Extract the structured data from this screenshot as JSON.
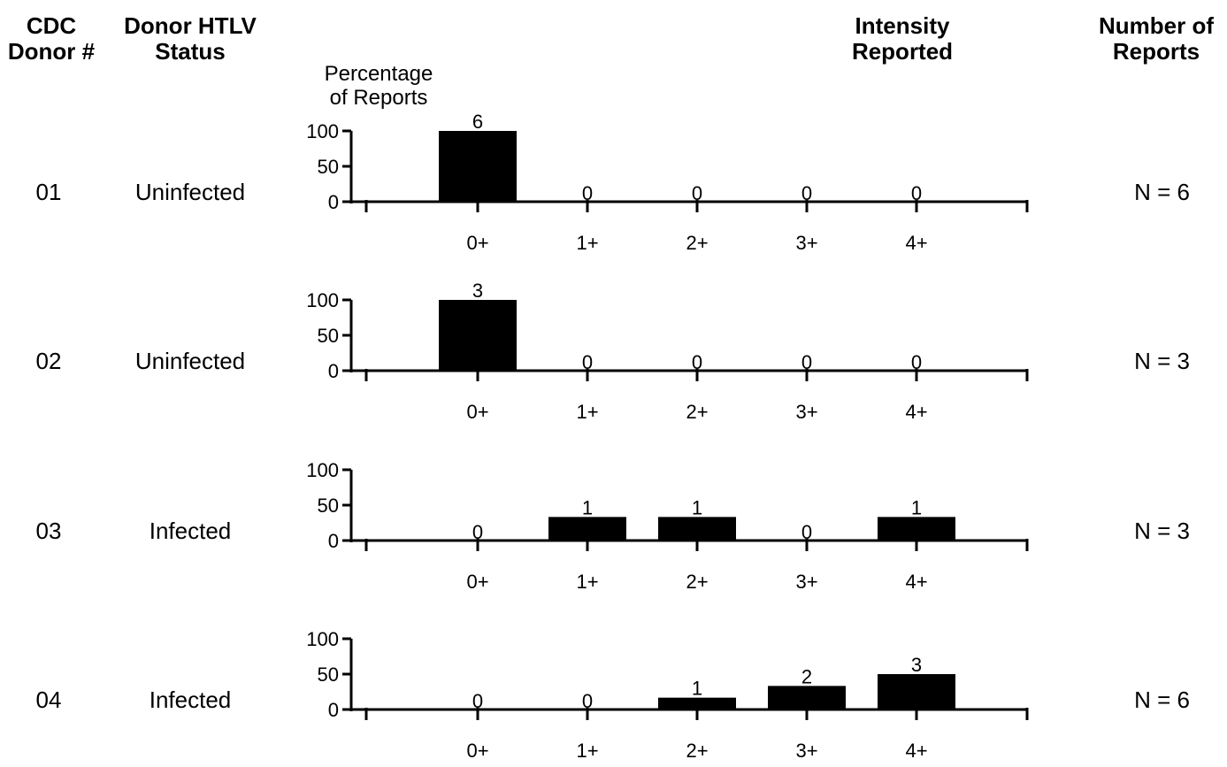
{
  "headers": {
    "donor_num": [
      "CDC",
      "Donor #"
    ],
    "htlv_status": [
      "Donor HTLV",
      "Status"
    ],
    "intensity": [
      "Intensity",
      "Reported"
    ],
    "num_reports": [
      "Number of",
      "Reports"
    ]
  },
  "y_axis_title": [
    "Percentage",
    "of Reports"
  ],
  "chart_data": [
    {
      "type": "bar",
      "donor": "01",
      "status": "Uninfected",
      "n_label": "N = 6",
      "categories": [
        "0+",
        "1+",
        "2+",
        "3+",
        "4+"
      ],
      "values": [
        100,
        0,
        0,
        0,
        0
      ],
      "counts": [
        "6",
        "0",
        "0",
        "0",
        "0"
      ],
      "yticks": [
        "100",
        "50",
        "0"
      ],
      "ylim": [
        0,
        100
      ]
    },
    {
      "type": "bar",
      "donor": "02",
      "status": "Uninfected",
      "n_label": "N = 3",
      "categories": [
        "0+",
        "1+",
        "2+",
        "3+",
        "4+"
      ],
      "values": [
        100,
        0,
        0,
        0,
        0
      ],
      "counts": [
        "3",
        "0",
        "0",
        "0",
        "0"
      ],
      "yticks": [
        "100",
        "50",
        "0"
      ],
      "ylim": [
        0,
        100
      ]
    },
    {
      "type": "bar",
      "donor": "03",
      "status": "Infected",
      "n_label": "N = 3",
      "categories": [
        "0+",
        "1+",
        "2+",
        "3+",
        "4+"
      ],
      "values": [
        0,
        33.3,
        33.3,
        0,
        33.3
      ],
      "counts": [
        "0",
        "1",
        "1",
        "0",
        "1"
      ],
      "yticks": [
        "100",
        "50",
        "0"
      ],
      "ylim": [
        0,
        100
      ]
    },
    {
      "type": "bar",
      "donor": "04",
      "status": "Infected",
      "n_label": "N = 6",
      "categories": [
        "0+",
        "1+",
        "2+",
        "3+",
        "4+"
      ],
      "values": [
        0,
        0,
        16.7,
        33.3,
        50
      ],
      "counts": [
        "0",
        "0",
        "1",
        "2",
        "3"
      ],
      "yticks": [
        "100",
        "50",
        "0"
      ],
      "ylim": [
        0,
        100
      ]
    }
  ]
}
